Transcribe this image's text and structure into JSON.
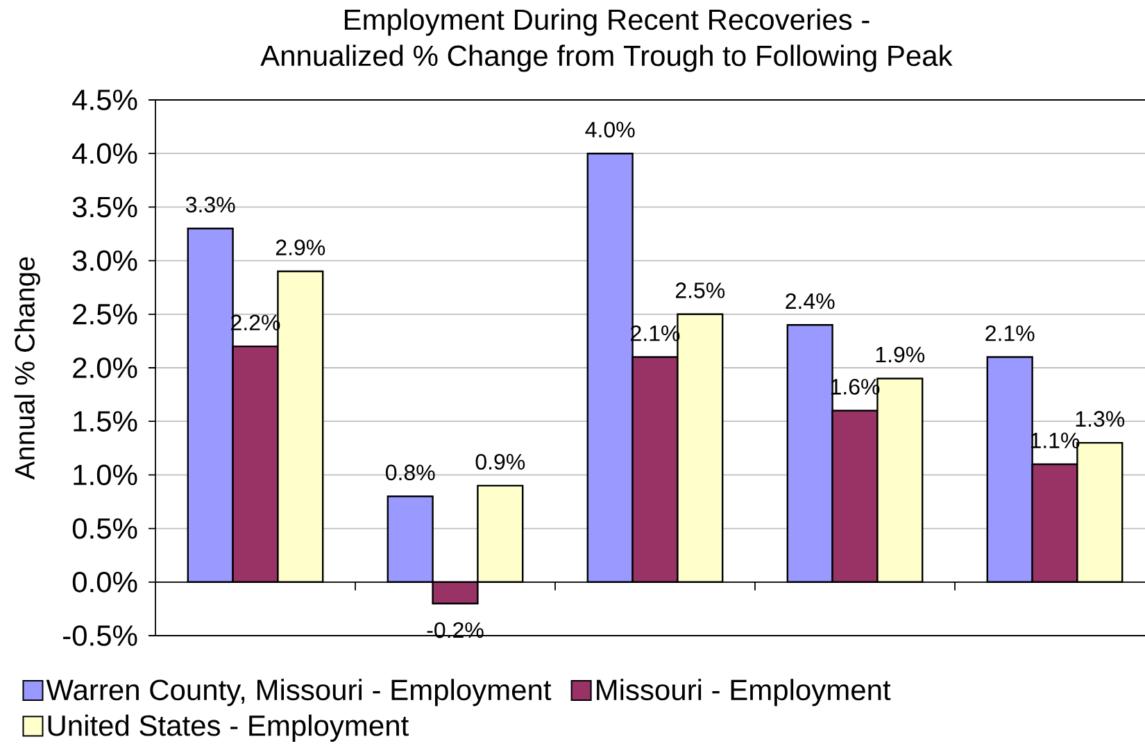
{
  "chart_data": {
    "type": "bar",
    "title": "Employment During Recent Recoveries -",
    "subtitle": "Annualized % Change from Trough to Following Peak",
    "ylabel": "Annual % Change",
    "categories": [
      null,
      null,
      null,
      null,
      null
    ],
    "series": [
      {
        "name": "Warren County, Missouri - Employment",
        "color": "#9999ff",
        "values": [
          3.3,
          0.8,
          4.0,
          2.4,
          2.1
        ],
        "value_labels": [
          "3.3%",
          "0.8%",
          "4.0%",
          "2.4%",
          "2.1%"
        ]
      },
      {
        "name": "Missouri - Employment",
        "color": "#993366",
        "values": [
          2.2,
          -0.2,
          2.1,
          1.6,
          1.1
        ],
        "value_labels": [
          "2.2%",
          "-0.2%",
          "2.1%",
          "1.6%",
          "1.1%"
        ]
      },
      {
        "name": "United States - Employment",
        "color": "#ffffcc",
        "values": [
          2.9,
          0.9,
          2.5,
          1.9,
          1.3
        ],
        "value_labels": [
          "2.9%",
          "0.9%",
          "2.5%",
          "1.9%",
          "1.3%"
        ]
      }
    ],
    "ylim": [
      -0.5,
      4.5
    ],
    "yticks": [
      {
        "value": -0.5,
        "label": "-0.5%"
      },
      {
        "value": 0,
        "label": "0.0%"
      },
      {
        "value": 0.5,
        "label": "0.5%"
      },
      {
        "value": 1,
        "label": "1.0%"
      },
      {
        "value": 1.5,
        "label": "1.5%"
      },
      {
        "value": 2,
        "label": "2.0%"
      },
      {
        "value": 2.5,
        "label": "2.5%"
      },
      {
        "value": 3,
        "label": "3.0%"
      },
      {
        "value": 3.5,
        "label": "3.5%"
      },
      {
        "value": 4,
        "label": "4.0%"
      },
      {
        "value": 4.5,
        "label": "4.5%"
      }
    ],
    "grid": "y",
    "legend": "bottom"
  }
}
